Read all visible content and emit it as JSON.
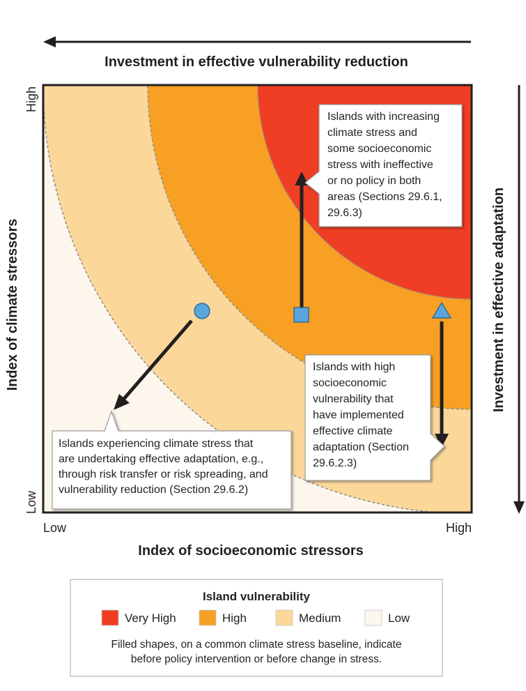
{
  "top_arrow_label": "Investment in effective vulnerability reduction",
  "right_arrow_label": "Investment in effective adaptation",
  "x_axis_label": "Index of socioeconomic stressors",
  "y_axis_label": "Index of climate stressors",
  "x_tick_low": "Low",
  "x_tick_high": "High",
  "y_tick_low": "Low",
  "y_tick_high": "High",
  "colors": {
    "very_high": "#ef3e24",
    "high": "#f7a023",
    "medium": "#fcd79a",
    "low": "#fdf6ec",
    "marker": "#5aa5dc",
    "frame": "#231f20"
  },
  "callouts": {
    "square": [
      "Islands with increasing",
      "climate stress and",
      "some socioeconomic",
      "stress with ineffective",
      "or no policy in both",
      "areas (Sections 29.6.1,",
      "29.6.3)"
    ],
    "triangle": [
      "Islands with high",
      "socioeconomic",
      "vulnerability that",
      "have implemented",
      "effective climate",
      "adaptation (Section",
      "29.6.2.3)"
    ],
    "circle": [
      "Islands experiencing climate stress that",
      "are undertaking effective adaptation, e.g.,",
      "through risk transfer or risk spreading, and",
      "vulnerability reduction (Section 29.6.2)"
    ]
  },
  "legend": {
    "title": "Island vulnerability",
    "items": [
      {
        "label": "Very High",
        "color": "#ef3e24"
      },
      {
        "label": "High",
        "color": "#f7a023"
      },
      {
        "label": "Medium",
        "color": "#fcd79a"
      },
      {
        "label": "Low",
        "color": "#fdf6ec"
      }
    ],
    "note": [
      "Filled shapes, on a common climate stress baseline, indicate",
      "before policy intervention or before change in stress."
    ]
  }
}
